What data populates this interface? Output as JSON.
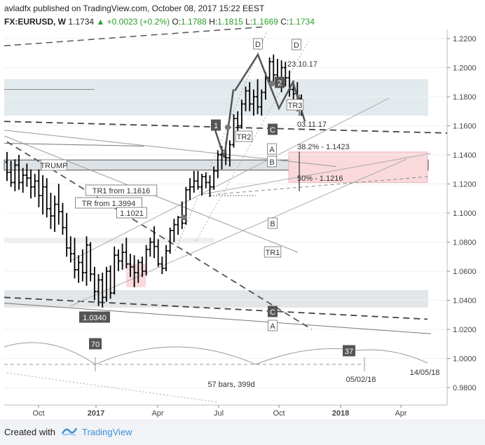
{
  "header": {
    "publisher": "avladfx",
    "published_text": "published on TradingView.com, October 08, 2017 15:22 EEST",
    "symbol": "FX:EURUSD, W",
    "last": "1.1734",
    "change": "+0.0023 (+0.2%)",
    "open_label": "O:",
    "open": "1.1788",
    "high_label": "H:",
    "high": "1.1815",
    "low_label": "L:",
    "low": "1.1669",
    "close_label": "C:",
    "close": "1.1734"
  },
  "footer": {
    "created_with": "Created with",
    "brand": "TradingView"
  },
  "chart_data": {
    "type": "candlestick",
    "title": "",
    "xlabel": "",
    "ylabel": "",
    "ylim": [
      0.97,
      1.225
    ],
    "y_ticks": [
      "1.2200",
      "1.2000",
      "1.1800",
      "1.1600",
      "1.1400",
      "1.1200",
      "1.1000",
      "1.0800",
      "1.0600",
      "1.0400",
      "1.0200",
      "1.0000",
      "0.9800"
    ],
    "x_ticks": [
      "Oct",
      "2017",
      "Apr",
      "Jul",
      "Oct",
      "2018",
      "Apr"
    ],
    "grid": true,
    "colors": {
      "price_bars": "#000000",
      "zones": "#dfe6ea",
      "pink_zone": "#f9d9dc",
      "dashed": "#555555",
      "trend": "#9a9a9a"
    },
    "bars": [
      {
        "o": 1.135,
        "h": 1.142,
        "l": 1.122,
        "c": 1.128
      },
      {
        "o": 1.128,
        "h": 1.136,
        "l": 1.118,
        "c": 1.121
      },
      {
        "o": 1.121,
        "h": 1.137,
        "l": 1.115,
        "c": 1.133
      },
      {
        "o": 1.133,
        "h": 1.14,
        "l": 1.116,
        "c": 1.121
      },
      {
        "o": 1.121,
        "h": 1.131,
        "l": 1.114,
        "c": 1.126
      },
      {
        "o": 1.126,
        "h": 1.134,
        "l": 1.118,
        "c": 1.124
      },
      {
        "o": 1.124,
        "h": 1.13,
        "l": 1.11,
        "c": 1.118
      },
      {
        "o": 1.118,
        "h": 1.127,
        "l": 1.111,
        "c": 1.122
      },
      {
        "o": 1.122,
        "h": 1.13,
        "l": 1.104,
        "c": 1.112
      },
      {
        "o": 1.112,
        "h": 1.126,
        "l": 1.099,
        "c": 1.118
      },
      {
        "o": 1.118,
        "h": 1.124,
        "l": 1.097,
        "c": 1.103
      },
      {
        "o": 1.103,
        "h": 1.114,
        "l": 1.089,
        "c": 1.098
      },
      {
        "o": 1.098,
        "h": 1.112,
        "l": 1.087,
        "c": 1.106
      },
      {
        "o": 1.106,
        "h": 1.12,
        "l": 1.092,
        "c": 1.101
      },
      {
        "o": 1.101,
        "h": 1.107,
        "l": 1.085,
        "c": 1.09
      },
      {
        "o": 1.09,
        "h": 1.1,
        "l": 1.07,
        "c": 1.076
      },
      {
        "o": 1.076,
        "h": 1.084,
        "l": 1.066,
        "c": 1.072
      },
      {
        "o": 1.072,
        "h": 1.083,
        "l": 1.055,
        "c": 1.061
      },
      {
        "o": 1.061,
        "h": 1.071,
        "l": 1.052,
        "c": 1.066
      },
      {
        "o": 1.066,
        "h": 1.075,
        "l": 1.053,
        "c": 1.059
      },
      {
        "o": 1.059,
        "h": 1.084,
        "l": 1.05,
        "c": 1.078
      },
      {
        "o": 1.078,
        "h": 1.08,
        "l": 1.053,
        "c": 1.058
      },
      {
        "o": 1.058,
        "h": 1.063,
        "l": 1.04,
        "c": 1.046
      },
      {
        "o": 1.046,
        "h": 1.058,
        "l": 1.036,
        "c": 1.054
      },
      {
        "o": 1.054,
        "h": 1.059,
        "l": 1.035,
        "c": 1.042
      },
      {
        "o": 1.042,
        "h": 1.063,
        "l": 1.039,
        "c": 1.06
      },
      {
        "o": 1.06,
        "h": 1.064,
        "l": 1.041,
        "c": 1.045
      },
      {
        "o": 1.045,
        "h": 1.077,
        "l": 1.044,
        "c": 1.071
      },
      {
        "o": 1.071,
        "h": 1.075,
        "l": 1.06,
        "c": 1.067
      },
      {
        "o": 1.067,
        "h": 1.079,
        "l": 1.061,
        "c": 1.073
      },
      {
        "o": 1.073,
        "h": 1.083,
        "l": 1.062,
        "c": 1.065
      },
      {
        "o": 1.065,
        "h": 1.072,
        "l": 1.056,
        "c": 1.063
      },
      {
        "o": 1.063,
        "h": 1.071,
        "l": 1.049,
        "c": 1.059
      },
      {
        "o": 1.059,
        "h": 1.068,
        "l": 1.052,
        "c": 1.066
      },
      {
        "o": 1.066,
        "h": 1.07,
        "l": 1.056,
        "c": 1.06
      },
      {
        "o": 1.06,
        "h": 1.078,
        "l": 1.057,
        "c": 1.075
      },
      {
        "o": 1.075,
        "h": 1.083,
        "l": 1.07,
        "c": 1.08
      },
      {
        "o": 1.08,
        "h": 1.091,
        "l": 1.069,
        "c": 1.077
      },
      {
        "o": 1.077,
        "h": 1.082,
        "l": 1.063,
        "c": 1.065
      },
      {
        "o": 1.065,
        "h": 1.07,
        "l": 1.058,
        "c": 1.062
      },
      {
        "o": 1.062,
        "h": 1.078,
        "l": 1.06,
        "c": 1.074
      },
      {
        "o": 1.074,
        "h": 1.09,
        "l": 1.072,
        "c": 1.088
      },
      {
        "o": 1.088,
        "h": 1.096,
        "l": 1.08,
        "c": 1.092
      },
      {
        "o": 1.092,
        "h": 1.098,
        "l": 1.085,
        "c": 1.097
      },
      {
        "o": 1.097,
        "h": 1.108,
        "l": 1.089,
        "c": 1.093
      },
      {
        "o": 1.093,
        "h": 1.118,
        "l": 1.092,
        "c": 1.116
      },
      {
        "o": 1.116,
        "h": 1.124,
        "l": 1.109,
        "c": 1.118
      },
      {
        "o": 1.118,
        "h": 1.129,
        "l": 1.114,
        "c": 1.122
      },
      {
        "o": 1.122,
        "h": 1.129,
        "l": 1.116,
        "c": 1.118
      },
      {
        "o": 1.118,
        "h": 1.127,
        "l": 1.112,
        "c": 1.125
      },
      {
        "o": 1.125,
        "h": 1.128,
        "l": 1.117,
        "c": 1.121
      },
      {
        "o": 1.121,
        "h": 1.126,
        "l": 1.111,
        "c": 1.118
      },
      {
        "o": 1.118,
        "h": 1.132,
        "l": 1.116,
        "c": 1.129
      },
      {
        "o": 1.129,
        "h": 1.143,
        "l": 1.124,
        "c": 1.14
      },
      {
        "o": 1.14,
        "h": 1.146,
        "l": 1.13,
        "c": 1.143
      },
      {
        "o": 1.143,
        "h": 1.149,
        "l": 1.133,
        "c": 1.138
      },
      {
        "o": 1.138,
        "h": 1.15,
        "l": 1.132,
        "c": 1.147
      },
      {
        "o": 1.147,
        "h": 1.168,
        "l": 1.145,
        "c": 1.165
      },
      {
        "o": 1.165,
        "h": 1.17,
        "l": 1.155,
        "c": 1.16
      },
      {
        "o": 1.16,
        "h": 1.178,
        "l": 1.158,
        "c": 1.175
      },
      {
        "o": 1.175,
        "h": 1.187,
        "l": 1.17,
        "c": 1.184
      },
      {
        "o": 1.184,
        "h": 1.19,
        "l": 1.17,
        "c": 1.175
      },
      {
        "o": 1.175,
        "h": 1.185,
        "l": 1.167,
        "c": 1.18
      },
      {
        "o": 1.18,
        "h": 1.192,
        "l": 1.168,
        "c": 1.173
      },
      {
        "o": 1.173,
        "h": 1.185,
        "l": 1.167,
        "c": 1.183
      },
      {
        "o": 1.183,
        "h": 1.197,
        "l": 1.178,
        "c": 1.193
      },
      {
        "o": 1.193,
        "h": 1.207,
        "l": 1.19,
        "c": 1.204
      },
      {
        "o": 1.204,
        "h": 1.209,
        "l": 1.19,
        "c": 1.195
      },
      {
        "o": 1.195,
        "h": 1.206,
        "l": 1.186,
        "c": 1.191
      },
      {
        "o": 1.191,
        "h": 1.205,
        "l": 1.183,
        "c": 1.2
      },
      {
        "o": 1.2,
        "h": 1.204,
        "l": 1.187,
        "c": 1.193
      },
      {
        "o": 1.193,
        "h": 1.198,
        "l": 1.18,
        "c": 1.185
      },
      {
        "o": 1.185,
        "h": 1.191,
        "l": 1.178,
        "c": 1.182
      },
      {
        "o": 1.182,
        "h": 1.19,
        "l": 1.17,
        "c": 1.178
      },
      {
        "o": 1.1788,
        "h": 1.1815,
        "l": 1.1669,
        "c": 1.1734
      }
    ],
    "annotations": [
      {
        "text": "TRUMP"
      },
      {
        "text": "TR1 from 1.1616"
      },
      {
        "text": "TR from 1.3994"
      },
      {
        "text": "1.1021"
      },
      {
        "text": "TR2"
      },
      {
        "text": "TR3"
      },
      {
        "text": "TR1"
      },
      {
        "text": "23.10.17"
      },
      {
        "text": "03.11.17"
      },
      {
        "text": "38.2% - 1.1423"
      },
      {
        "text": "50% - 1.1216"
      },
      {
        "text": "1.0340"
      },
      {
        "text": "70"
      },
      {
        "text": "37"
      },
      {
        "text": "57 bars, 399d"
      },
      {
        "text": "05/02/18"
      },
      {
        "text": "14/05/18"
      }
    ],
    "markers": [
      "D",
      "D",
      "2",
      "1",
      "C",
      "A",
      "B",
      "B",
      "C",
      "A"
    ]
  }
}
